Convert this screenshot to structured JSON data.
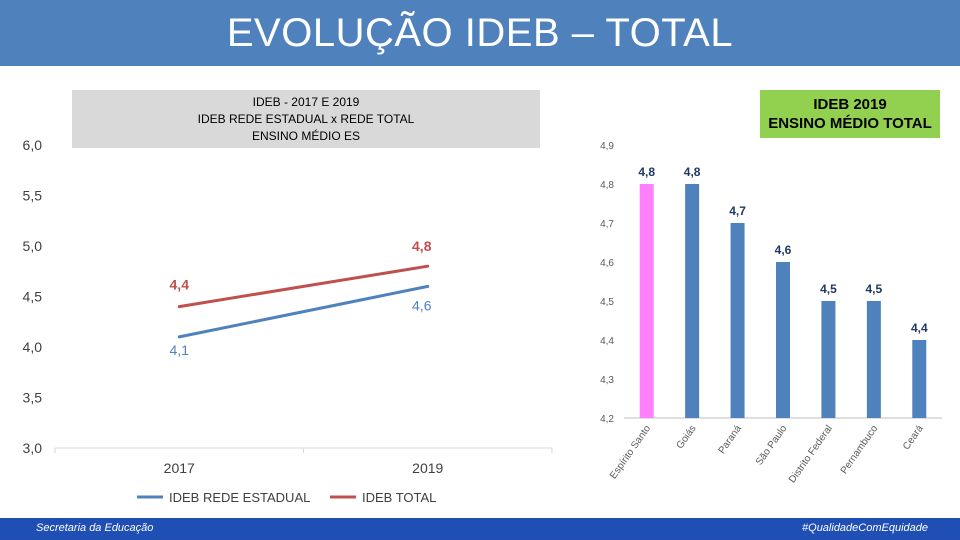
{
  "header": {
    "title": "EVOLUÇÃO IDEB – TOTAL"
  },
  "left_chart_box": {
    "line1": "IDEB -  2017  E  2019",
    "line2": "IDEB REDE ESTADUAL x REDE TOTAL",
    "line3": "ENSINO MÉDIO ES"
  },
  "right_chart_box": {
    "line1": "IDEB 2019",
    "line2": "ENSINO MÉDIO TOTAL"
  },
  "footer": {
    "left": "Secretaria  da Educação",
    "right": "#QualidadeComEquidade"
  },
  "colors": {
    "header": "#4f81bd",
    "estadual": "#4f81bd",
    "total": "#c0504d",
    "bar": "#4f81bd",
    "bar_highlight": "#ff80ff",
    "right_box": "#92d050",
    "footer": "#1f4fb5"
  },
  "chart_data": [
    {
      "type": "line",
      "x": [
        "2017",
        "2019"
      ],
      "ylim": [
        3.0,
        6.0
      ],
      "yticks": [
        "3,0",
        "3,5",
        "4,0",
        "4,5",
        "5,0",
        "5,5",
        "6,0"
      ],
      "legend": "bottom",
      "series": [
        {
          "name": "IDEB REDE ESTADUAL",
          "values": [
            4.1,
            4.6
          ],
          "labels": [
            "4,1",
            "4,6"
          ]
        },
        {
          "name": "IDEB TOTAL",
          "values": [
            4.4,
            4.8
          ],
          "labels": [
            "4,4",
            "4,8"
          ]
        }
      ]
    },
    {
      "type": "bar",
      "categories": [
        "Espírito Santo",
        "Goiás",
        "Paraná",
        "São Paulo",
        "Distrito Federal",
        "Pernambuco",
        "Ceará"
      ],
      "values": [
        4.8,
        4.8,
        4.7,
        4.6,
        4.5,
        4.5,
        4.4
      ],
      "labels": [
        "4,8",
        "4,8",
        "4,7",
        "4,6",
        "4,5",
        "4,5",
        "4,4"
      ],
      "highlight": "Espírito Santo",
      "ylim": [
        4.2,
        4.9
      ],
      "yticks": [
        "4,2",
        "4,3",
        "4,4",
        "4,5",
        "4,6",
        "4,7",
        "4,8",
        "4,9"
      ]
    }
  ]
}
